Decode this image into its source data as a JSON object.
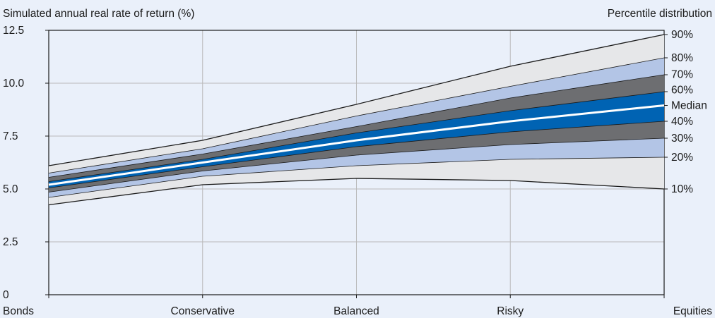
{
  "chart_data": {
    "type": "area",
    "ylabel": "Simulated annual real rate of return (%)",
    "legend_title": "Percentile distribution",
    "categories": [
      "Bonds",
      "Conservative",
      "Balanced",
      "Risky",
      "Equities"
    ],
    "ylim": [
      0,
      12.5
    ],
    "yticks": [
      0,
      2.5,
      5.0,
      7.5,
      10.0,
      12.5
    ],
    "ytick_labels": [
      "0",
      "2.5",
      "5.0",
      "7.5",
      "10.0",
      "12.5"
    ],
    "grid": true,
    "series": [
      {
        "name": "10%",
        "values": [
          4.25,
          5.2,
          5.5,
          5.4,
          5.0
        ]
      },
      {
        "name": "20%",
        "values": [
          4.6,
          5.6,
          6.1,
          6.4,
          6.5
        ]
      },
      {
        "name": "30%",
        "values": [
          4.85,
          5.85,
          6.6,
          7.1,
          7.4
        ]
      },
      {
        "name": "40%",
        "values": [
          5.05,
          6.05,
          7.0,
          7.7,
          8.2
        ]
      },
      {
        "name": "Median",
        "values": [
          5.2,
          6.25,
          7.3,
          8.2,
          8.95
        ]
      },
      {
        "name": "60%",
        "values": [
          5.35,
          6.4,
          7.65,
          8.7,
          9.6
        ]
      },
      {
        "name": "70%",
        "values": [
          5.55,
          6.65,
          7.95,
          9.3,
          10.4
        ]
      },
      {
        "name": "80%",
        "values": [
          5.75,
          6.9,
          8.45,
          9.85,
          11.2
        ]
      },
      {
        "name": "90%",
        "values": [
          6.1,
          7.3,
          9.0,
          10.8,
          12.3
        ]
      }
    ],
    "band_colors": [
      "#e6e7e9",
      "#b3c5e6",
      "#6d6e71",
      "#0063b3",
      "#0063b3",
      "#6d6e71",
      "#b3c5e6",
      "#e6e7e9"
    ],
    "median_color": "#ffffff",
    "outline_color": "#1a1a1a",
    "grid_color": "#b9b9b9"
  }
}
